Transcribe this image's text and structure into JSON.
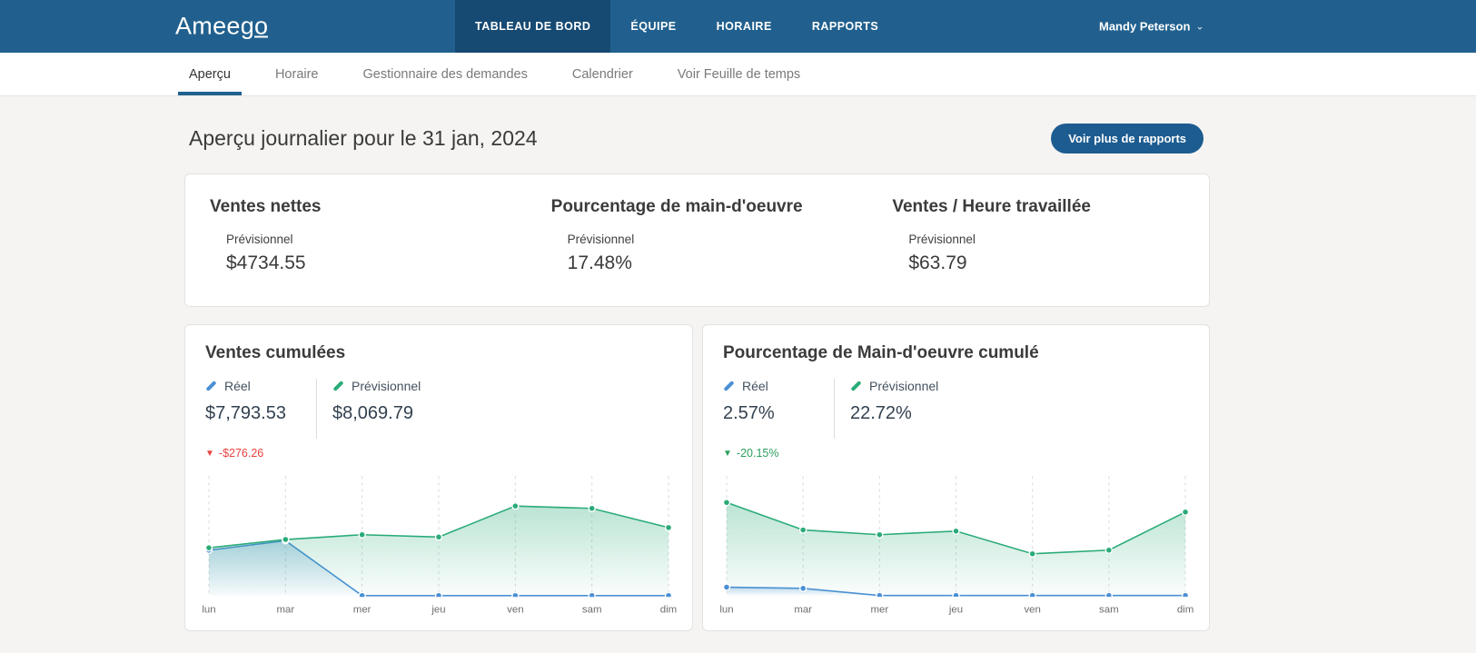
{
  "header": {
    "logo": "Ameego",
    "nav": [
      {
        "label": "TABLEAU DE BORD",
        "active": true
      },
      {
        "label": "ÉQUIPE",
        "active": false
      },
      {
        "label": "HORAIRE",
        "active": false
      },
      {
        "label": "RAPPORTS",
        "active": false
      }
    ],
    "user": {
      "name": "Mandy Peterson",
      "chevron": "⌄"
    }
  },
  "subnav": {
    "items": [
      {
        "label": "Aperçu",
        "active": true
      },
      {
        "label": "Horaire",
        "active": false
      },
      {
        "label": "Gestionnaire des demandes",
        "active": false
      },
      {
        "label": "Calendrier",
        "active": false
      },
      {
        "label": "Voir Feuille de temps",
        "active": false
      }
    ]
  },
  "page": {
    "title": "Aperçu journalier pour le 31 jan, 2024",
    "reports_button": "Voir plus de rapports"
  },
  "stats": {
    "items": [
      {
        "title": "Ventes nettes",
        "label": "Prévisionnel",
        "value": "$4734.55"
      },
      {
        "title": "Pourcentage de main-d'oeuvre",
        "label": "Prévisionnel",
        "value": "17.48%"
      },
      {
        "title": "Ventes / Heure travaillée",
        "label": "Prévisionnel",
        "value": "$63.79"
      }
    ]
  },
  "charts": [
    {
      "title": "Ventes cumulées",
      "actual": {
        "label": "Réel",
        "value": "$7,793.53"
      },
      "forecast": {
        "label": "Prévisionnel",
        "value": "$8,069.79"
      },
      "delta": {
        "arrow": "▼",
        "text": "-$276.26"
      }
    },
    {
      "title": "Pourcentage de Main-d'oeuvre cumulé",
      "actual": {
        "label": "Réel",
        "value": "2.57%"
      },
      "forecast": {
        "label": "Prévisionnel",
        "value": "22.72%"
      },
      "delta": {
        "arrow": "▼",
        "text": "-20.15%"
      }
    }
  ],
  "chart_data": [
    {
      "type": "area",
      "title": "Ventes cumulées",
      "x": [
        "lun",
        "mar",
        "mer",
        "jeu",
        "ven",
        "sam",
        "dim"
      ],
      "series": [
        {
          "name": "Réel",
          "color": "#4a90d5",
          "values": [
            38,
            46,
            0,
            0,
            0,
            0,
            0
          ]
        },
        {
          "name": "Prévisionnel",
          "color": "#2aab78",
          "values": [
            40,
            47,
            51,
            49,
            75,
            73,
            57
          ]
        }
      ],
      "ylim": [
        0,
        100
      ],
      "y_units": "relative-percent-of-plot-height (no y axis shown)",
      "grid": "vertical-dashed",
      "legend_position": "top"
    },
    {
      "type": "area",
      "title": "Pourcentage de Main-d'oeuvre cumulé",
      "x": [
        "lun",
        "mar",
        "mer",
        "jeu",
        "ven",
        "sam",
        "dim"
      ],
      "series": [
        {
          "name": "Réel",
          "color": "#4a90d5",
          "values": [
            7,
            6,
            0,
            0,
            0,
            0,
            0
          ]
        },
        {
          "name": "Prévisionnel",
          "color": "#2aab78",
          "values": [
            78,
            55,
            51,
            54,
            35,
            38,
            70
          ]
        }
      ],
      "ylim": [
        0,
        100
      ],
      "y_units": "relative-percent-of-plot-height (no y axis shown)",
      "grid": "vertical-dashed",
      "legend_position": "top"
    }
  ],
  "colors": {
    "header_bg": "#21608e",
    "header_active_bg": "#164a73",
    "button_bg": "#1d5c90",
    "subnav_active_underline": "#21618f",
    "actual_series": "#4a90d5",
    "forecast_series": "#2aab78",
    "delta_negative_red": "#e8433f",
    "delta_negative_green": "#2b9f5e",
    "page_bg": "#f5f4f2"
  }
}
